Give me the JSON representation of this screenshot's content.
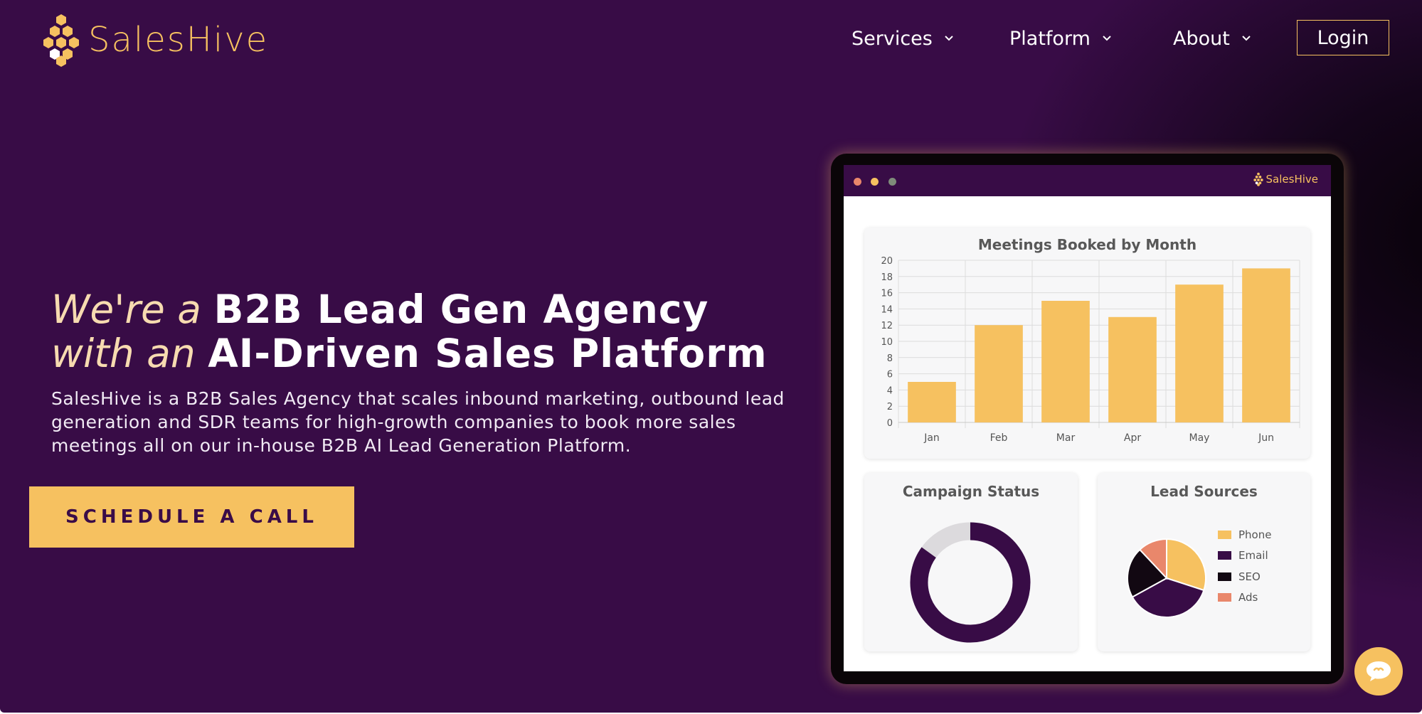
{
  "brand": {
    "name": "SalesHive",
    "color": "#f6c160",
    "bg": "#380c46"
  },
  "nav": {
    "items": [
      {
        "label": "Services"
      },
      {
        "label": "Platform"
      },
      {
        "label": "About"
      }
    ],
    "login_label": "Login"
  },
  "hero": {
    "line1_light": "We're a",
    "line1_bold": "B2B Lead Gen Agency",
    "line2_light": "with an",
    "line2_bold": "AI-Driven Sales Platform",
    "description": "SalesHive is a B2B Sales Agency that scales inbound marketing, outbound lead generation and SDR teams for high-growth companies to book more sales meetings all on our in-house B2B AI Lead Generation Platform.",
    "cta_label": "SCHEDULE A CALL"
  },
  "dashboard": {
    "brand": "SalesHive",
    "window_dots": [
      "#e9876b",
      "#f6c160",
      "#7f8c7a"
    ]
  },
  "chart_data": [
    {
      "type": "bar",
      "title": "Meetings Booked by Month",
      "categories": [
        "Jan",
        "Feb",
        "Mar",
        "Apr",
        "May",
        "Jun"
      ],
      "values": [
        5,
        12,
        15,
        13,
        17,
        19
      ],
      "ylim": [
        0,
        20
      ],
      "yticks": [
        0,
        2,
        4,
        6,
        8,
        10,
        12,
        14,
        16,
        18,
        20
      ],
      "grid": true,
      "color": "#f6c160"
    },
    {
      "type": "pie",
      "title": "Campaign Status",
      "variant": "donut",
      "slices": [
        {
          "value": 85,
          "color": "#380c46"
        },
        {
          "value": 15,
          "color": "#dcdadd"
        }
      ]
    },
    {
      "type": "pie",
      "title": "Lead Sources",
      "legend_position": "right",
      "slices": [
        {
          "label": "Phone",
          "value": 30,
          "color": "#f6c160"
        },
        {
          "label": "Email",
          "value": 37,
          "color": "#380c46"
        },
        {
          "label": "SEO",
          "value": 21,
          "color": "#120812"
        },
        {
          "label": "Ads",
          "value": 12,
          "color": "#e9876b"
        }
      ]
    }
  ]
}
